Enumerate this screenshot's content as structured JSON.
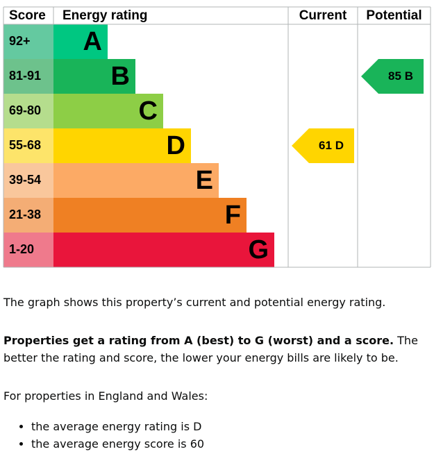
{
  "header": {
    "score": "Score",
    "rating": "Energy rating",
    "current": "Current",
    "potential": "Potential"
  },
  "bands": [
    {
      "score": "92+",
      "letter": "A",
      "color": "#00c781",
      "light": "#64c9a0"
    },
    {
      "score": "81-91",
      "letter": "B",
      "color": "#19b459",
      "light": "#6dc28c"
    },
    {
      "score": "69-80",
      "letter": "C",
      "color": "#8dce46",
      "light": "#b5dd8d"
    },
    {
      "score": "55-68",
      "letter": "D",
      "color": "#ffd500",
      "light": "#fde46a"
    },
    {
      "score": "39-54",
      "letter": "E",
      "color": "#fcaa65",
      "light": "#f9c79c"
    },
    {
      "score": "21-38",
      "letter": "F",
      "color": "#ef8023",
      "light": "#f4ad75"
    },
    {
      "score": "1-20",
      "letter": "G",
      "color": "#e9153b",
      "light": "#ef7a8c"
    }
  ],
  "current": {
    "score": 61,
    "band": "D"
  },
  "potential": {
    "score": 85,
    "band": "B"
  },
  "text": {
    "intro": "The graph shows this property’s current and potential energy rating.",
    "rating_bold": "Properties get a rating from A (best) to G (worst) and a score.",
    "rating_rest": " The better the rating and score, the lower your energy bills are likely to be.",
    "region": "For properties in England and Wales:",
    "bullets": [
      "the average energy rating is D",
      "the average energy score is 60"
    ]
  }
}
